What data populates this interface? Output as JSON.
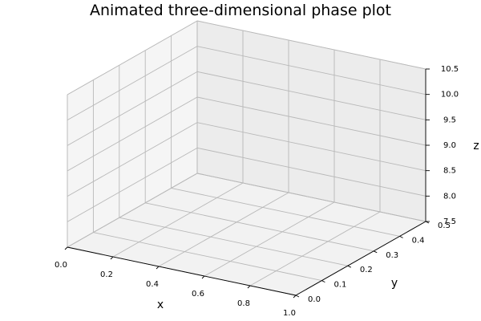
{
  "chart_data": {
    "type": "line",
    "projection": "3d",
    "title": "Animated three-dimensional phase plot",
    "xlabel": "x",
    "ylabel": "y",
    "zlabel": "z",
    "xlim": [
      0.0,
      1.0
    ],
    "ylim": [
      0.0,
      0.5
    ],
    "zlim": [
      7.5,
      10.5
    ],
    "x_ticks": [
      "0.0",
      "0.2",
      "0.4",
      "0.6",
      "0.8",
      "1.0"
    ],
    "y_ticks": [
      "0.0",
      "0.1",
      "0.2",
      "0.3",
      "0.4",
      "0.5"
    ],
    "z_ticks": [
      "7.5",
      "8.0",
      "8.5",
      "9.0",
      "9.5",
      "10.0",
      "10.5"
    ],
    "series": [],
    "grid": true,
    "colors": {
      "pane_back": "#ececec",
      "pane_left": "#f5f5f5",
      "pane_floor": "#f2f2f2",
      "grid": "#b8b8b8",
      "pane_edge": "#cfcfcf",
      "axis_line": "#000000"
    }
  }
}
